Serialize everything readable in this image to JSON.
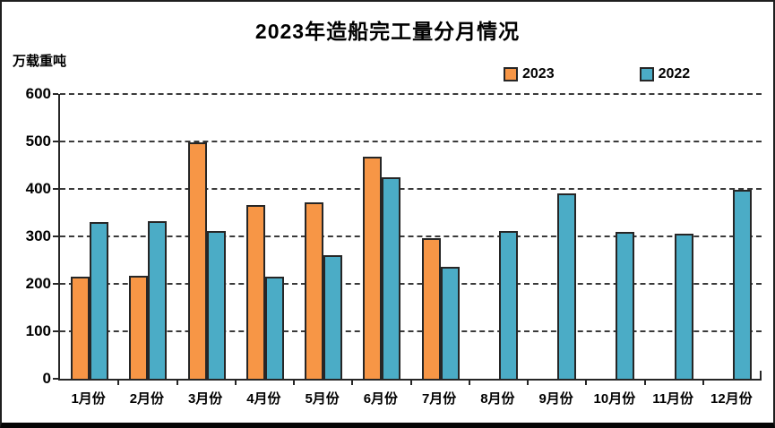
{
  "title": "2023年造船完工量分月情况",
  "unit_label": "万载重吨",
  "colors": {
    "series_2023": "#F79646",
    "series_2022": "#4BACC6",
    "bar_border": "#262626",
    "axis": "#262626",
    "gridline": "#3a3a3a",
    "text": "#000000",
    "background": "#ffffff",
    "frame_border": "#1f1f1f"
  },
  "legend": {
    "items": [
      {
        "label": "2023",
        "color": "#F79646"
      },
      {
        "label": "2022",
        "color": "#4BACC6"
      }
    ]
  },
  "chart_data": {
    "type": "bar",
    "title": "2023年造船完工量分月情况",
    "xlabel": "",
    "ylabel": "万载重吨",
    "categories": [
      "1月份",
      "2月份",
      "3月份",
      "4月份",
      "5月份",
      "6月份",
      "7月份",
      "8月份",
      "9月份",
      "10月份",
      "11月份",
      "12月份"
    ],
    "series": [
      {
        "name": "2023",
        "color": "#F79646",
        "values": [
          211,
          214,
          494,
          363,
          368,
          465,
          293,
          null,
          null,
          null,
          null,
          null
        ]
      },
      {
        "name": "2022",
        "color": "#4BACC6",
        "values": [
          326,
          328,
          307,
          211,
          257,
          421,
          233,
          308,
          386,
          305,
          302,
          394
        ]
      }
    ],
    "ylim": [
      0,
      600
    ],
    "ytick_step": 100,
    "yticks": [
      0,
      100,
      200,
      300,
      400,
      500,
      600
    ],
    "grid": "dashed-horizontal",
    "legend_position": "top-right"
  }
}
